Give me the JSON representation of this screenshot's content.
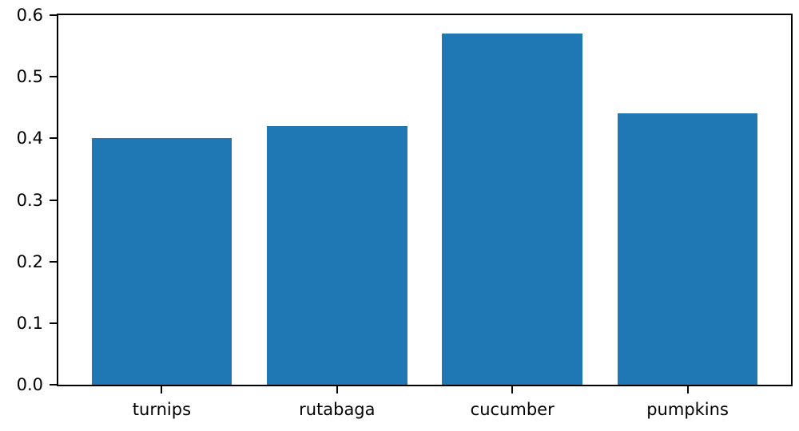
{
  "chart_data": {
    "type": "bar",
    "title": "",
    "xlabel": "",
    "ylabel": "",
    "categories": [
      "turnips",
      "rutabaga",
      "cucumber",
      "pumpkins"
    ],
    "values": [
      0.4,
      0.42,
      0.57,
      0.44
    ],
    "yticks": [
      0.0,
      0.1,
      0.2,
      0.3,
      0.4,
      0.5,
      0.6
    ],
    "ytick_labels": [
      "0.0",
      "0.1",
      "0.2",
      "0.3",
      "0.4",
      "0.5",
      "0.6"
    ],
    "ylim": [
      0.0,
      0.6
    ],
    "xlim": [
      -0.59,
      3.59
    ],
    "bar_width_fraction": 0.8,
    "bar_color": "#1f77b4",
    "spine_color": "#000000",
    "tick_color": "#000000",
    "background_color": "#ffffff",
    "grid": false,
    "legend": null
  }
}
